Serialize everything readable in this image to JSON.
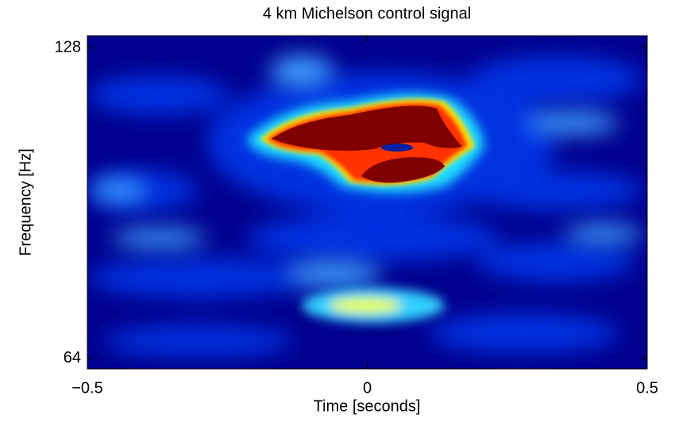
{
  "chart_data": {
    "type": "spectrogram",
    "title": "4 km Michelson control signal",
    "x_label": "Time [seconds]",
    "y_label": "Frequency [Hz]",
    "xlim": [
      -0.5,
      0.5
    ],
    "xticks": [
      {
        "value": -0.5,
        "label": "−0.5"
      },
      0,
      0.5
    ],
    "ylim": [
      62.5,
      131.5
    ],
    "yticks": [
      64,
      128
    ],
    "log_y": true
  }
}
